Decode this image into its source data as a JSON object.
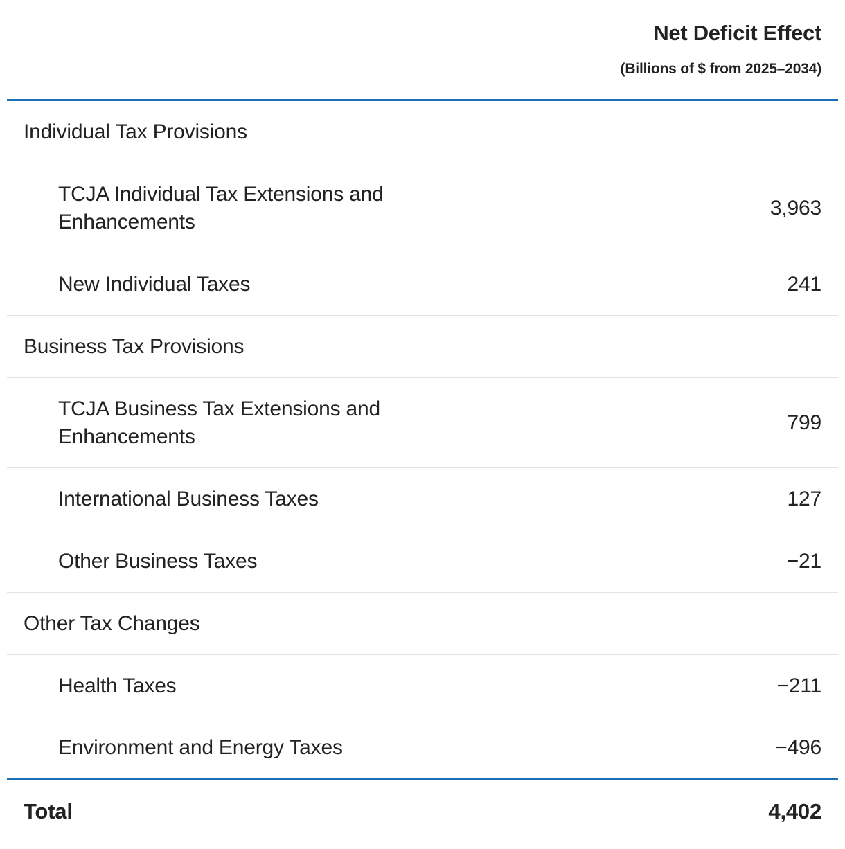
{
  "chart_data": {
    "type": "table",
    "header": {
      "title": "Net Deficit Effect",
      "subtitle": "(Billions of $ from 2025–2034)"
    },
    "groups": [
      {
        "label": "Individual Tax Provisions",
        "rows": [
          {
            "label": "TCJA Individual Tax Extensions and Enhancements",
            "value": "3,963"
          },
          {
            "label": "New Individual Taxes",
            "value": "241"
          }
        ]
      },
      {
        "label": "Business Tax Provisions",
        "rows": [
          {
            "label": "TCJA Business Tax Extensions and Enhancements",
            "value": "799"
          },
          {
            "label": "International Business Taxes",
            "value": "127"
          },
          {
            "label": "Other Business Taxes",
            "value": "−21"
          }
        ]
      },
      {
        "label": "Other Tax Changes",
        "rows": [
          {
            "label": "Health Taxes",
            "value": "−211"
          },
          {
            "label": "Environment and Energy Taxes",
            "value": "−496"
          }
        ]
      }
    ],
    "total": {
      "label": "Total",
      "value": "4,402"
    },
    "accent_color": "#1a6fb5"
  }
}
